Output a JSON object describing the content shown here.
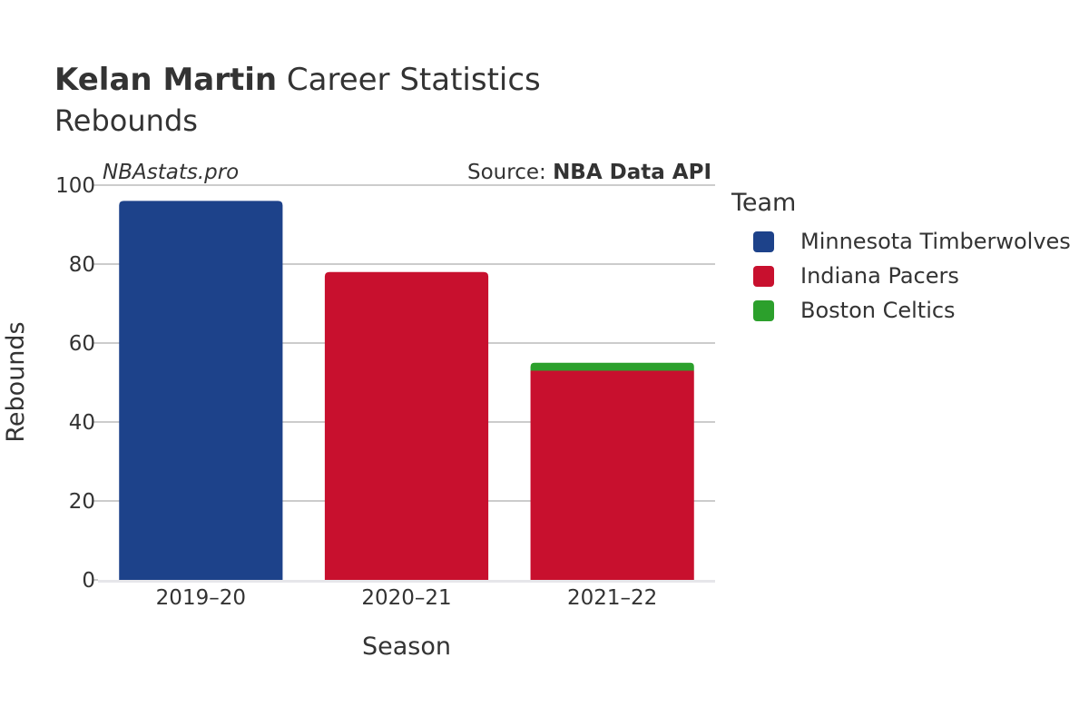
{
  "header": {
    "title_bold": "Kelan Martin",
    "title_rest": " Career Statistics",
    "subtitle": "Rebounds"
  },
  "watermark": "NBAstats.pro",
  "source": {
    "prefix": "Source: ",
    "name": "NBA Data API"
  },
  "legend": {
    "title": "Team",
    "items": [
      {
        "label": "Minnesota Timberwolves",
        "color": "#1d428a"
      },
      {
        "label": "Indiana Pacers",
        "color": "#c8102e"
      },
      {
        "label": "Boston Celtics",
        "color": "#2ca02c"
      }
    ]
  },
  "chart_data": {
    "type": "bar",
    "stacked": true,
    "categories": [
      "2019–20",
      "2020–21",
      "2021–22"
    ],
    "series": [
      {
        "name": "Minnesota Timberwolves",
        "color": "#1d428a",
        "values": [
          96,
          0,
          0
        ]
      },
      {
        "name": "Indiana Pacers",
        "color": "#c8102e",
        "values": [
          0,
          78,
          53
        ]
      },
      {
        "name": "Boston Celtics",
        "color": "#2ca02c",
        "values": [
          0,
          0,
          2
        ]
      }
    ],
    "xlabel": "Season",
    "ylabel": "Rebounds",
    "ylim": [
      0,
      100
    ],
    "yticks": [
      0,
      20,
      40,
      60,
      80,
      100
    ],
    "grid": true,
    "legend_position": "right"
  }
}
